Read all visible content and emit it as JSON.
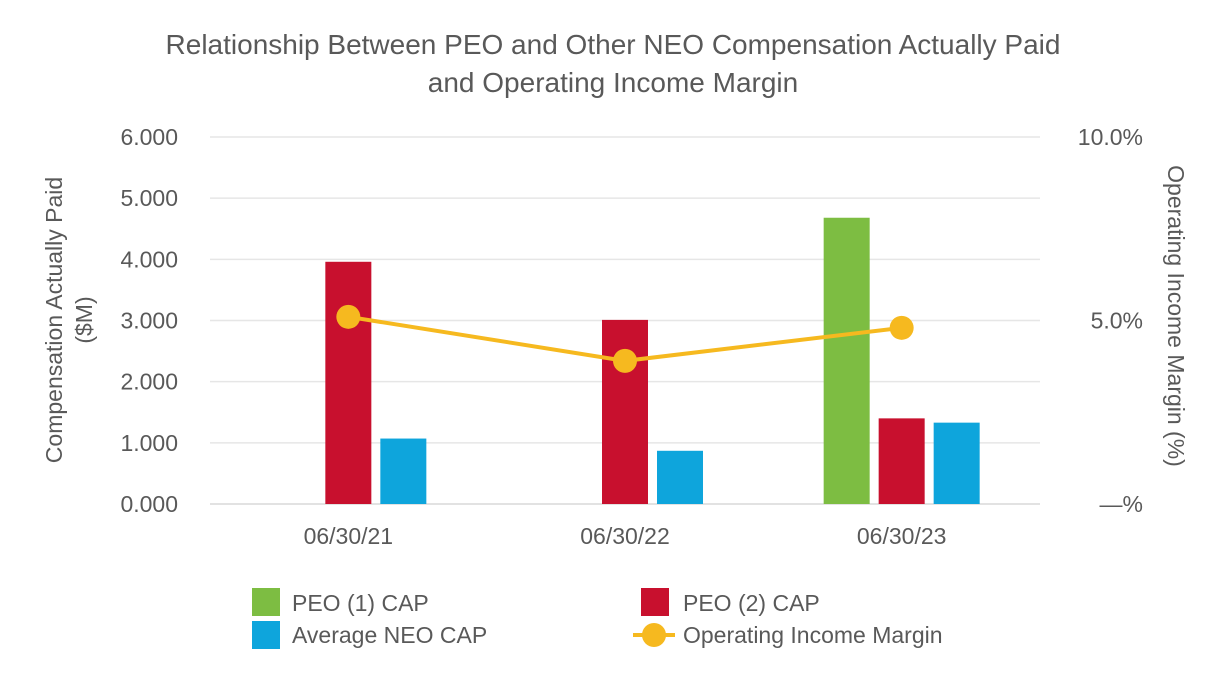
{
  "chart_data": {
    "type": "bar",
    "title_lines": [
      "Relationship Between PEO and Other NEO Compensation Actually Paid",
      "and Operating Income Margin"
    ],
    "categories": [
      "06/30/21",
      "06/30/22",
      "06/30/23"
    ],
    "series": [
      {
        "name": "PEO (1) CAP",
        "color": "#7dbd42",
        "values": [
          null,
          null,
          4.68
        ]
      },
      {
        "name": "PEO (2) CAP",
        "color": "#c8102e",
        "values": [
          3.96,
          3.01,
          1.4
        ]
      },
      {
        "name": "Average NEO CAP",
        "color": "#0ea5dc",
        "values": [
          1.07,
          0.87,
          1.33
        ]
      }
    ],
    "line_series": {
      "name": "Operating Income Margin",
      "type": "line",
      "axis": "right",
      "color": "#f6b91f",
      "values": [
        5.1,
        3.9,
        4.8
      ]
    },
    "y_left": {
      "label_lines": [
        "Compensation Actually Paid",
        "($M)"
      ],
      "range": [
        0,
        6
      ],
      "ticks": [
        0,
        1,
        2,
        3,
        4,
        5,
        6
      ],
      "tick_labels": [
        "0.000",
        "1.000",
        "2.000",
        "3.000",
        "4.000",
        "5.000",
        "6.000"
      ]
    },
    "y_right": {
      "label": "Operating Income Margin (%)",
      "range": [
        0,
        10
      ],
      "ticks": [
        0,
        5,
        10
      ],
      "tick_labels": [
        "—%",
        "5.0%",
        "10.0%"
      ]
    },
    "grid": true,
    "legend_position": "bottom",
    "legend_order": [
      "PEO (1) CAP",
      "PEO (2) CAP",
      "Average NEO CAP",
      "Operating Income Margin"
    ]
  }
}
